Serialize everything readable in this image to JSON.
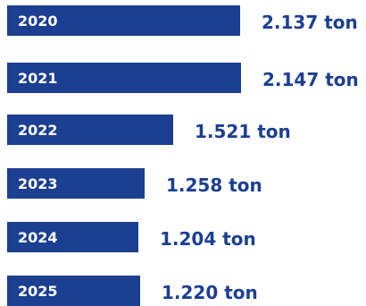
{
  "chart_data": {
    "type": "bar",
    "orientation": "horizontal",
    "categories": [
      "2020",
      "2021",
      "2022",
      "2023",
      "2024",
      "2025"
    ],
    "values": [
      2137,
      2147,
      1521,
      1258,
      1204,
      1220
    ],
    "value_labels": [
      "2.137 ton",
      "2.147 ton",
      "1.521 ton",
      "1.258 ton",
      "1.204 ton",
      "1.220 ton"
    ],
    "grid": false
  },
  "colors": {
    "bar": "#1b3f91",
    "category_text": "#ffffff",
    "value_text": "#1b3f91"
  }
}
